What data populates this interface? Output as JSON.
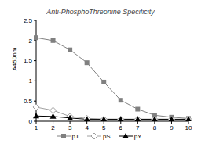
{
  "chart_data": {
    "type": "line",
    "title": "Anti-PhosphoThreonine Specificity",
    "y_label": "A450nm",
    "categories": [
      "1",
      "2",
      "3",
      "4",
      "5",
      "6",
      "7",
      "8",
      "9",
      "10"
    ],
    "series": [
      {
        "name": "pT",
        "color": "#808080",
        "marker": "square",
        "values": [
          2.07,
          2.0,
          1.77,
          1.45,
          0.97,
          0.52,
          0.3,
          0.15,
          0.1,
          0.07
        ]
      },
      {
        "name": "pS",
        "color": "#a0a0a0",
        "marker": "diamond",
        "values": [
          0.35,
          0.27,
          0.12,
          0.07,
          0.05,
          0.05,
          0.05,
          0.05,
          0.05,
          0.05
        ]
      },
      {
        "name": "pY",
        "color": "#000000",
        "marker": "triangle",
        "values": [
          0.13,
          0.12,
          0.08,
          0.05,
          0.05,
          0.05,
          0.05,
          0.05,
          0.05,
          0.05
        ]
      }
    ],
    "ylim": [
      0,
      2.5
    ],
    "yticks": [
      0,
      0.5,
      1,
      1.5,
      2,
      2.5
    ],
    "grid": false,
    "legend": "bottom"
  }
}
